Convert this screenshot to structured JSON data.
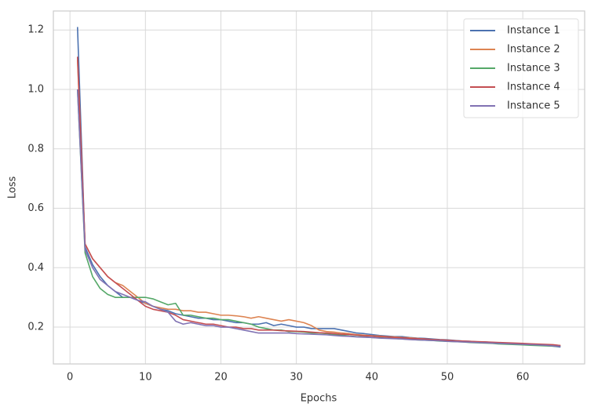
{
  "chart_data": {
    "type": "line",
    "xlabel": "Epochs",
    "ylabel": "Loss",
    "x": [
      1,
      2,
      3,
      4,
      5,
      6,
      7,
      8,
      9,
      10,
      11,
      12,
      13,
      14,
      15,
      16,
      17,
      18,
      19,
      20,
      21,
      22,
      23,
      24,
      25,
      26,
      27,
      28,
      29,
      30,
      31,
      32,
      33,
      34,
      35,
      36,
      37,
      38,
      39,
      40,
      41,
      42,
      43,
      44,
      45,
      46,
      47,
      48,
      49,
      50,
      51,
      52,
      53,
      54,
      55,
      56,
      57,
      58,
      59,
      60,
      61,
      62,
      63,
      64,
      65
    ],
    "series": [
      {
        "name": "Instance 1",
        "color": "#4c72b0",
        "values": [
          1.21,
          0.47,
          0.41,
          0.37,
          0.34,
          0.32,
          0.3,
          0.3,
          0.29,
          0.28,
          0.27,
          0.26,
          0.255,
          0.245,
          0.24,
          0.235,
          0.23,
          0.23,
          0.225,
          0.225,
          0.22,
          0.215,
          0.215,
          0.21,
          0.21,
          0.215,
          0.205,
          0.21,
          0.205,
          0.2,
          0.2,
          0.195,
          0.195,
          0.195,
          0.195,
          0.19,
          0.185,
          0.18,
          0.178,
          0.175,
          0.172,
          0.17,
          0.168,
          0.168,
          0.165,
          0.163,
          0.162,
          0.16,
          0.158,
          0.157,
          0.155,
          0.153,
          0.152,
          0.15,
          0.15,
          0.148,
          0.147,
          0.145,
          0.144,
          0.142,
          0.14,
          0.139,
          0.138,
          0.136,
          0.133
        ]
      },
      {
        "name": "Instance 2",
        "color": "#dd8452",
        "values": [
          1.1,
          0.48,
          0.43,
          0.4,
          0.37,
          0.35,
          0.34,
          0.32,
          0.3,
          0.28,
          0.27,
          0.265,
          0.26,
          0.26,
          0.255,
          0.255,
          0.25,
          0.25,
          0.245,
          0.24,
          0.24,
          0.238,
          0.235,
          0.23,
          0.235,
          0.23,
          0.225,
          0.22,
          0.225,
          0.22,
          0.215,
          0.205,
          0.19,
          0.185,
          0.183,
          0.18,
          0.178,
          0.175,
          0.173,
          0.171,
          0.17,
          0.168,
          0.167,
          0.165,
          0.164,
          0.162,
          0.16,
          0.158,
          0.157,
          0.155,
          0.154,
          0.152,
          0.151,
          0.15,
          0.149,
          0.147,
          0.146,
          0.145,
          0.144,
          0.142,
          0.141,
          0.14,
          0.138,
          0.14,
          0.138
        ]
      },
      {
        "name": "Instance 3",
        "color": "#55a868",
        "values": [
          1.0,
          0.45,
          0.37,
          0.33,
          0.31,
          0.3,
          0.3,
          0.3,
          0.3,
          0.3,
          0.295,
          0.285,
          0.275,
          0.28,
          0.24,
          0.24,
          0.235,
          0.23,
          0.23,
          0.225,
          0.225,
          0.22,
          0.215,
          0.21,
          0.2,
          0.195,
          0.19,
          0.19,
          0.185,
          0.185,
          0.183,
          0.18,
          0.18,
          0.178,
          0.175,
          0.173,
          0.17,
          0.168,
          0.167,
          0.165,
          0.164,
          0.163,
          0.162,
          0.16,
          0.159,
          0.157,
          0.156,
          0.155,
          0.153,
          0.152,
          0.151,
          0.15,
          0.148,
          0.147,
          0.146,
          0.145,
          0.143,
          0.142,
          0.141,
          0.14,
          0.139,
          0.138,
          0.137,
          0.136,
          0.135
        ]
      },
      {
        "name": "Instance 4",
        "color": "#c44e52",
        "values": [
          1.11,
          0.48,
          0.43,
          0.4,
          0.37,
          0.35,
          0.33,
          0.31,
          0.29,
          0.27,
          0.26,
          0.255,
          0.25,
          0.24,
          0.225,
          0.22,
          0.215,
          0.21,
          0.21,
          0.205,
          0.2,
          0.2,
          0.195,
          0.195,
          0.19,
          0.19,
          0.19,
          0.188,
          0.187,
          0.186,
          0.185,
          0.183,
          0.181,
          0.18,
          0.178,
          0.176,
          0.175,
          0.173,
          0.171,
          0.17,
          0.168,
          0.167,
          0.165,
          0.164,
          0.162,
          0.161,
          0.16,
          0.158,
          0.157,
          0.156,
          0.154,
          0.153,
          0.152,
          0.151,
          0.15,
          0.149,
          0.148,
          0.147,
          0.146,
          0.145,
          0.144,
          0.143,
          0.142,
          0.141,
          0.138
        ]
      },
      {
        "name": "Instance 5",
        "color": "#8172b3",
        "values": [
          1.0,
          0.46,
          0.4,
          0.36,
          0.34,
          0.32,
          0.31,
          0.3,
          0.29,
          0.285,
          0.27,
          0.26,
          0.25,
          0.22,
          0.21,
          0.215,
          0.21,
          0.205,
          0.205,
          0.2,
          0.2,
          0.195,
          0.19,
          0.185,
          0.18,
          0.18,
          0.18,
          0.18,
          0.18,
          0.178,
          0.177,
          0.176,
          0.175,
          0.174,
          0.172,
          0.17,
          0.169,
          0.167,
          0.166,
          0.165,
          0.163,
          0.162,
          0.161,
          0.16,
          0.158,
          0.157,
          0.156,
          0.155,
          0.154,
          0.152,
          0.151,
          0.15,
          0.149,
          0.148,
          0.147,
          0.146,
          0.145,
          0.144,
          0.143,
          0.142,
          0.141,
          0.14,
          0.139,
          0.137,
          0.135
        ]
      }
    ],
    "xlim": [
      -2.2,
      68.2
    ],
    "xticks": [
      0,
      10,
      20,
      30,
      40,
      50,
      60
    ],
    "ylim": [
      0.076,
      1.264
    ],
    "yticks": [
      0.2,
      0.4,
      0.6,
      0.8,
      {
        "value": 1,
        "label": "1.0"
      },
      1.2
    ],
    "grid": true,
    "legend": "upper right"
  }
}
